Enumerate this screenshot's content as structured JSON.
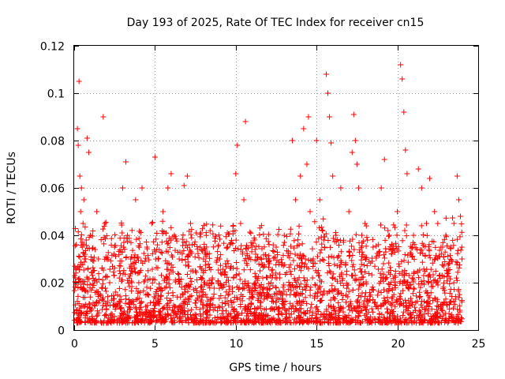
{
  "chart_data": {
    "type": "scatter",
    "title": "Day 193 of 2025, Rate Of TEC Index for receiver cn15",
    "xlabel": "GPS time / hours",
    "ylabel": "ROTI / TECUs",
    "xlim": [
      0,
      25
    ],
    "ylim": [
      0,
      0.12
    ],
    "xticks": [
      0,
      5,
      10,
      15,
      20,
      25
    ],
    "xtick_labels": [
      "0",
      "5",
      "10",
      "15",
      "20",
      "25"
    ],
    "yticks": [
      0,
      0.02,
      0.04,
      0.06,
      0.08,
      0.1,
      0.12
    ],
    "ytick_labels": [
      "0",
      "0.02",
      "0.04",
      "0.06",
      "0.08",
      "0.1",
      "0.12"
    ],
    "grid": true,
    "marker": "+",
    "color": "#ff0000",
    "series": [
      {
        "name": "ROTI",
        "x": [
          0.1,
          0.2,
          0.25,
          0.3,
          0.35,
          0.4,
          0.45,
          0.5,
          0.55,
          0.6,
          0.7,
          0.8,
          0.9,
          1.0,
          1.2,
          1.4,
          1.5,
          1.8,
          1.9,
          2.0,
          2.2,
          2.5,
          2.8,
          3.0,
          3.2,
          3.3,
          3.5,
          3.8,
          4.0,
          4.2,
          4.5,
          4.8,
          5.0,
          5.2,
          5.5,
          5.8,
          6.0,
          6.2,
          6.5,
          6.8,
          7.0,
          7.2,
          7.5,
          7.8,
          8.0,
          8.5,
          9.0,
          9.5,
          10.0,
          10.1,
          10.3,
          10.5,
          10.6,
          10.8,
          11.0,
          11.5,
          12.0,
          12.5,
          13.0,
          13.5,
          13.7,
          14.0,
          14.2,
          14.4,
          14.5,
          14.6,
          14.8,
          15.0,
          15.2,
          15.5,
          15.6,
          15.7,
          15.8,
          15.9,
          16.0,
          16.2,
          16.5,
          17.0,
          17.2,
          17.3,
          17.4,
          17.5,
          17.6,
          17.8,
          18.0,
          18.5,
          19.0,
          19.2,
          19.5,
          20.0,
          20.2,
          20.3,
          20.4,
          20.5,
          20.6,
          21.0,
          21.3,
          21.5,
          21.8,
          22.0,
          22.3,
          22.5,
          22.8,
          23.0,
          23.3,
          23.5,
          23.7,
          23.8,
          23.9,
          24.0
        ],
        "y": [
          0.02,
          0.085,
          0.078,
          0.105,
          0.065,
          0.05,
          0.06,
          0.035,
          0.045,
          0.055,
          0.03,
          0.081,
          0.075,
          0.04,
          0.025,
          0.05,
          0.03,
          0.09,
          0.045,
          0.03,
          0.02,
          0.035,
          0.025,
          0.06,
          0.071,
          0.04,
          0.03,
          0.055,
          0.02,
          0.06,
          0.035,
          0.045,
          0.073,
          0.03,
          0.05,
          0.06,
          0.066,
          0.04,
          0.03,
          0.061,
          0.065,
          0.045,
          0.025,
          0.035,
          0.03,
          0.02,
          0.03,
          0.035,
          0.066,
          0.078,
          0.045,
          0.055,
          0.088,
          0.03,
          0.035,
          0.025,
          0.03,
          0.035,
          0.04,
          0.08,
          0.055,
          0.065,
          0.085,
          0.07,
          0.09,
          0.05,
          0.03,
          0.08,
          0.055,
          0.035,
          0.108,
          0.1,
          0.09,
          0.079,
          0.065,
          0.04,
          0.06,
          0.05,
          0.075,
          0.091,
          0.08,
          0.07,
          0.06,
          0.04,
          0.045,
          0.035,
          0.06,
          0.072,
          0.04,
          0.05,
          0.112,
          0.106,
          0.092,
          0.076,
          0.066,
          0.04,
          0.068,
          0.06,
          0.045,
          0.064,
          0.05,
          0.045,
          0.035,
          0.04,
          0.035,
          0.045,
          0.065,
          0.055,
          0.048,
          0.03
        ]
      }
    ],
    "noise_floor": {
      "count": 2600,
      "x_range": [
        0,
        24
      ],
      "typical_y": [
        0.003,
        0.035
      ]
    }
  }
}
